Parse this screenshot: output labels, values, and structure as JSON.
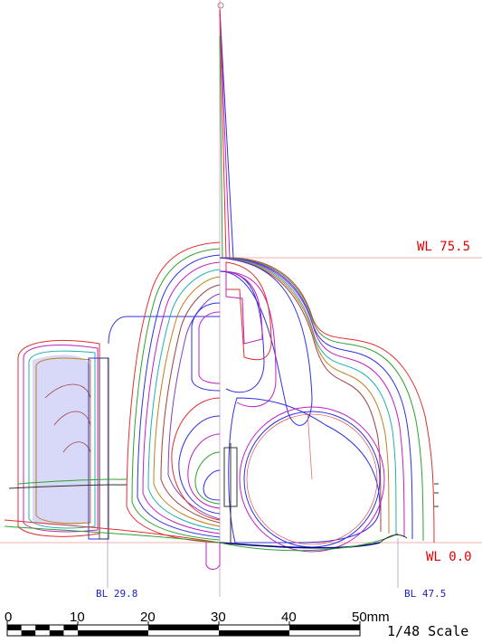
{
  "annotations": {
    "wl_top": "WL 75.5",
    "wl_bottom": "WL 0.0",
    "bl_left": "BL 29.8",
    "bl_right": "BL 47.5"
  },
  "scale_bar": {
    "ticks": [
      "0",
      "10",
      "20",
      "30",
      "40",
      "50mm"
    ],
    "scale_text": "1/48 Scale"
  },
  "colors": {
    "ref_line": "#f0b0b0",
    "center_line": "#d0b0d0",
    "bl_line": "#b0b0e0",
    "label_red": "#e00000",
    "label_blue": "#2020c0",
    "canopy_fill": "#d8d8f8"
  },
  "contour_colors": [
    "#e03030",
    "#30a030",
    "#3030e0",
    "#c020c0",
    "#20b0b0",
    "#c08020",
    "#a04040",
    "#8040c0"
  ]
}
